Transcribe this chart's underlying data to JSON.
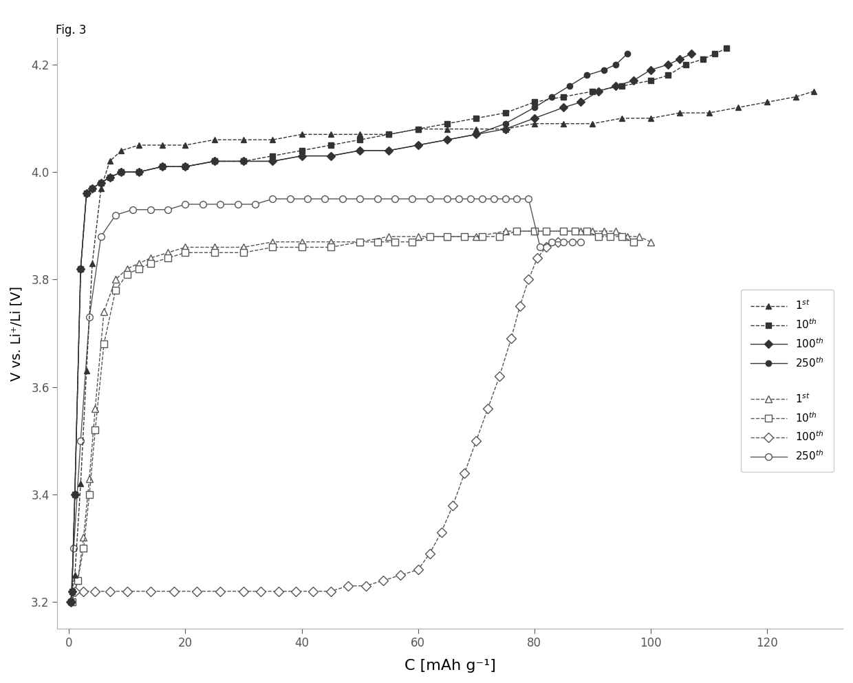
{
  "fig_label": "Fig. 3",
  "xlabel": "C [mAh g⁻¹]",
  "ylabel": "V vs. Li⁺/Li [V]",
  "xlim": [
    -2,
    133
  ],
  "ylim": [
    3.15,
    4.25
  ],
  "yticks": [
    3.2,
    3.4,
    3.6,
    3.8,
    4.0,
    4.2
  ],
  "xticks": [
    0,
    20,
    40,
    60,
    80,
    100,
    120
  ],
  "background": "#ffffff",
  "charge_1st": {
    "x": [
      0.3,
      0.5,
      1.0,
      2.0,
      3.0,
      4.0,
      5.5,
      7.0,
      9.0,
      12.0,
      16.0,
      20.0,
      25.0,
      30.0,
      35.0,
      40.0,
      45.0,
      50.0,
      55.0,
      60.0,
      65.0,
      70.0,
      75.0,
      80.0,
      85.0,
      90.0,
      95.0,
      100.0,
      105.0,
      110.0,
      115.0,
      120.0,
      125.0,
      128.0
    ],
    "y": [
      3.2,
      3.22,
      3.25,
      3.42,
      3.63,
      3.83,
      3.97,
      4.02,
      4.04,
      4.05,
      4.05,
      4.05,
      4.06,
      4.06,
      4.06,
      4.07,
      4.07,
      4.07,
      4.07,
      4.08,
      4.08,
      4.08,
      4.08,
      4.09,
      4.09,
      4.09,
      4.1,
      4.1,
      4.11,
      4.11,
      4.12,
      4.13,
      4.14,
      4.15
    ]
  },
  "charge_10th": {
    "x": [
      0.3,
      0.5,
      1.0,
      2.0,
      3.0,
      4.0,
      5.5,
      7.0,
      9.0,
      12.0,
      16.0,
      20.0,
      25.0,
      30.0,
      35.0,
      40.0,
      45.0,
      50.0,
      55.0,
      60.0,
      65.0,
      70.0,
      75.0,
      80.0,
      85.0,
      90.0,
      95.0,
      100.0,
      103.0,
      106.0,
      109.0,
      111.0,
      113.0
    ],
    "y": [
      3.2,
      3.22,
      3.4,
      3.82,
      3.96,
      3.97,
      3.98,
      3.99,
      4.0,
      4.0,
      4.01,
      4.01,
      4.02,
      4.02,
      4.03,
      4.04,
      4.05,
      4.06,
      4.07,
      4.08,
      4.09,
      4.1,
      4.11,
      4.13,
      4.14,
      4.15,
      4.16,
      4.17,
      4.18,
      4.2,
      4.21,
      4.22,
      4.23
    ]
  },
  "charge_100th": {
    "x": [
      0.3,
      0.5,
      1.0,
      2.0,
      3.0,
      4.0,
      5.5,
      7.0,
      9.0,
      12.0,
      16.0,
      20.0,
      25.0,
      30.0,
      35.0,
      40.0,
      45.0,
      50.0,
      55.0,
      60.0,
      65.0,
      70.0,
      75.0,
      80.0,
      85.0,
      88.0,
      91.0,
      94.0,
      97.0,
      100.0,
      103.0,
      105.0,
      107.0
    ],
    "y": [
      3.2,
      3.22,
      3.4,
      3.82,
      3.96,
      3.97,
      3.98,
      3.99,
      4.0,
      4.0,
      4.01,
      4.01,
      4.02,
      4.02,
      4.02,
      4.03,
      4.03,
      4.04,
      4.04,
      4.05,
      4.06,
      4.07,
      4.08,
      4.1,
      4.12,
      4.13,
      4.15,
      4.16,
      4.17,
      4.19,
      4.2,
      4.21,
      4.22
    ]
  },
  "charge_250th": {
    "x": [
      0.3,
      0.5,
      1.0,
      2.0,
      3.0,
      4.0,
      5.5,
      7.0,
      9.0,
      12.0,
      16.0,
      20.0,
      25.0,
      30.0,
      35.0,
      40.0,
      45.0,
      50.0,
      55.0,
      60.0,
      65.0,
      70.0,
      75.0,
      80.0,
      83.0,
      86.0,
      89.0,
      92.0,
      94.0,
      96.0
    ],
    "y": [
      3.2,
      3.22,
      3.4,
      3.82,
      3.96,
      3.97,
      3.98,
      3.99,
      4.0,
      4.0,
      4.01,
      4.01,
      4.02,
      4.02,
      4.02,
      4.03,
      4.03,
      4.04,
      4.04,
      4.05,
      4.06,
      4.07,
      4.09,
      4.12,
      4.14,
      4.16,
      4.18,
      4.19,
      4.2,
      4.22
    ]
  },
  "discharge_1st": {
    "x": [
      100.0,
      98.0,
      96.0,
      94.0,
      92.0,
      90.0,
      88.0,
      85.0,
      82.0,
      80.0,
      75.0,
      70.0,
      65.0,
      60.0,
      55.0,
      50.0,
      45.0,
      40.0,
      35.0,
      30.0,
      25.0,
      20.0,
      17.0,
      14.0,
      12.0,
      10.0,
      8.0,
      6.0,
      4.5,
      3.5,
      2.5,
      1.5,
      0.5
    ],
    "y": [
      3.87,
      3.88,
      3.88,
      3.89,
      3.89,
      3.89,
      3.89,
      3.89,
      3.89,
      3.89,
      3.89,
      3.88,
      3.88,
      3.88,
      3.88,
      3.87,
      3.87,
      3.87,
      3.87,
      3.86,
      3.86,
      3.86,
      3.85,
      3.84,
      3.83,
      3.82,
      3.8,
      3.74,
      3.56,
      3.43,
      3.32,
      3.24,
      3.2
    ]
  },
  "discharge_10th": {
    "x": [
      97.0,
      95.0,
      93.0,
      91.0,
      89.0,
      87.0,
      85.0,
      82.0,
      80.0,
      77.0,
      74.0,
      71.0,
      68.0,
      65.0,
      62.0,
      59.0,
      56.0,
      53.0,
      50.0,
      45.0,
      40.0,
      35.0,
      30.0,
      25.0,
      20.0,
      17.0,
      14.0,
      12.0,
      10.0,
      8.0,
      6.0,
      4.5,
      3.5,
      2.5,
      1.5,
      0.5
    ],
    "y": [
      3.87,
      3.88,
      3.88,
      3.88,
      3.89,
      3.89,
      3.89,
      3.89,
      3.89,
      3.89,
      3.88,
      3.88,
      3.88,
      3.88,
      3.88,
      3.87,
      3.87,
      3.87,
      3.87,
      3.86,
      3.86,
      3.86,
      3.85,
      3.85,
      3.85,
      3.84,
      3.83,
      3.82,
      3.81,
      3.78,
      3.68,
      3.52,
      3.4,
      3.3,
      3.24,
      3.2
    ]
  },
  "discharge_100th": {
    "x": [
      84.0,
      82.0,
      80.5,
      79.0,
      77.5,
      76.0,
      74.0,
      72.0,
      70.0,
      68.0,
      66.0,
      64.0,
      62.0,
      60.0,
      57.0,
      54.0,
      51.0,
      48.0,
      45.0,
      42.0,
      39.0,
      36.0,
      33.0,
      30.0,
      26.0,
      22.0,
      18.0,
      14.0,
      10.0,
      7.0,
      4.5,
      2.5,
      1.0,
      0.3
    ],
    "y": [
      3.87,
      3.86,
      3.84,
      3.8,
      3.75,
      3.69,
      3.62,
      3.56,
      3.5,
      3.44,
      3.38,
      3.33,
      3.29,
      3.26,
      3.25,
      3.24,
      3.23,
      3.23,
      3.22,
      3.22,
      3.22,
      3.22,
      3.22,
      3.22,
      3.22,
      3.22,
      3.22,
      3.22,
      3.22,
      3.22,
      3.22,
      3.22,
      3.22,
      3.2
    ]
  },
  "discharge_250th": {
    "x": [
      88.0,
      86.5,
      85.0,
      83.0,
      81.0,
      79.0,
      77.0,
      75.0,
      73.0,
      71.0,
      69.0,
      67.0,
      65.0,
      62.0,
      59.0,
      56.0,
      53.0,
      50.0,
      47.0,
      44.0,
      41.0,
      38.0,
      35.0,
      32.0,
      29.0,
      26.0,
      23.0,
      20.0,
      17.0,
      14.0,
      11.0,
      8.0,
      5.5,
      3.5,
      2.0,
      0.8,
      0.3
    ],
    "y": [
      3.87,
      3.87,
      3.87,
      3.87,
      3.86,
      3.95,
      3.95,
      3.95,
      3.95,
      3.95,
      3.95,
      3.95,
      3.95,
      3.95,
      3.95,
      3.95,
      3.95,
      3.95,
      3.95,
      3.95,
      3.95,
      3.95,
      3.95,
      3.94,
      3.94,
      3.94,
      3.94,
      3.94,
      3.93,
      3.93,
      3.93,
      3.92,
      3.88,
      3.73,
      3.5,
      3.3,
      3.2
    ]
  }
}
